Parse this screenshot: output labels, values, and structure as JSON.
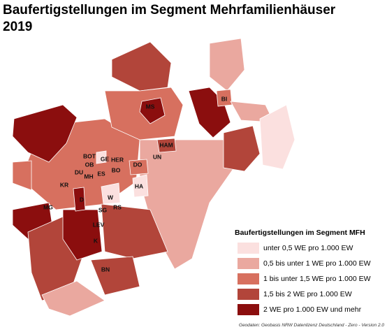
{
  "title_line1": "Baufertigstellungen im Segment Mehrfamilienhäuser",
  "title_line2": "2019",
  "cities": [
    "MS",
    "BI",
    "HAM",
    "UN",
    "BOT",
    "GE",
    "HER",
    "OB",
    "DU",
    "ES",
    "BO",
    "DO",
    "MH",
    "KR",
    "HA",
    "W",
    "D",
    "MG",
    "SG",
    "RS",
    "LEV",
    "K",
    "BN"
  ],
  "legend": {
    "title": "Baufertigstellungen im Segment MFH",
    "items": [
      {
        "label": "unter 0,5 WE pro 1.000 EW",
        "color": "#fbe0df"
      },
      {
        "label": "0,5 bis unter 1 WE pro 1.000 EW",
        "color": "#eaa89f"
      },
      {
        "label": "1 bis unter 1,5 WE pro 1.000 EW",
        "color": "#d7705f"
      },
      {
        "label": "1,5 bis 2 WE pro 1.000 EW",
        "color": "#b2453a"
      },
      {
        "label": "2 WE pro 1.000 EW und mehr",
        "color": "#8b0e0e"
      }
    ]
  },
  "source": "Geodaten: Geobasis NRW Datenlizenz Deutschland - Zero - Version 2.0"
}
